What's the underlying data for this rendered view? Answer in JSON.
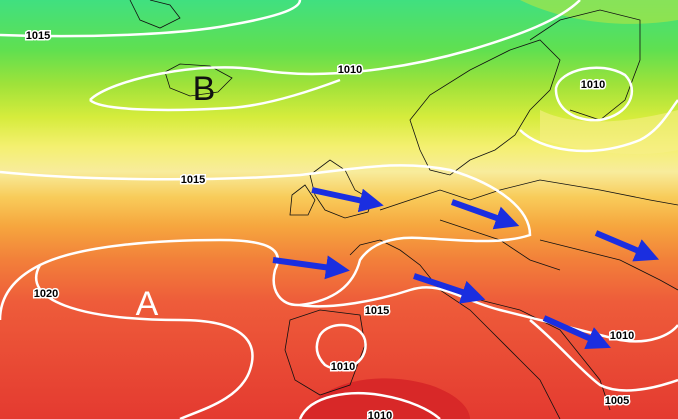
{
  "map": {
    "pressure_labels": [
      "1015",
      "1010",
      "1010",
      "1015",
      "1020",
      "1015",
      "1010",
      "1010",
      "1005",
      "1010"
    ],
    "centers": [
      "B",
      "A"
    ]
  }
}
